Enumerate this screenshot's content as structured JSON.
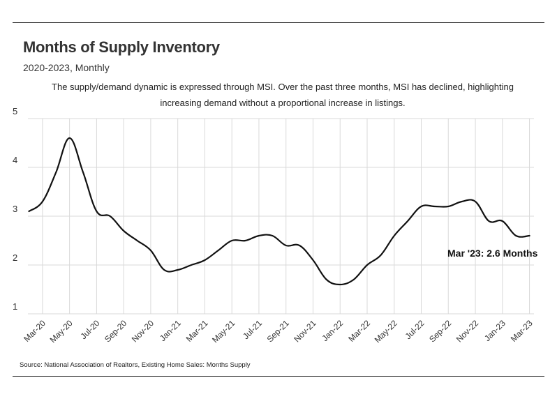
{
  "header": {
    "title": "Months of Supply Inventory",
    "subtitle": "2020-2023, Monthly",
    "description": "The supply/demand dynamic is expressed through MSI. Over the past three months, MSI has declined, highlighting increasing demand without a proportional increase in listings."
  },
  "source": "Source:  National Association of Realtors, Existing Home Sales: Months Supply",
  "colors": {
    "line": "#111111",
    "grid": "#d9d9d9",
    "text": "#333333"
  },
  "chart_data": {
    "type": "line",
    "title": "Months of Supply Inventory",
    "xlabel": "",
    "ylabel": "",
    "ylim": [
      1,
      5
    ],
    "yticks": [
      1,
      2,
      3,
      4,
      5
    ],
    "grid": true,
    "x_tick_labels": [
      "Mar-20",
      "May-20",
      "Jul-20",
      "Sep-20",
      "Nov-20",
      "Jan-21",
      "Mar-21",
      "May-21",
      "Jul-21",
      "Sep-21",
      "Nov-21",
      "Jan-22",
      "Mar-22",
      "May-22",
      "Jul-22",
      "Sep-22",
      "Nov-22",
      "Jan-23",
      "Mar-23"
    ],
    "categories": [
      "Feb-20",
      "Mar-20",
      "Apr-20",
      "May-20",
      "Jun-20",
      "Jul-20",
      "Aug-20",
      "Sep-20",
      "Oct-20",
      "Nov-20",
      "Dec-20",
      "Jan-21",
      "Feb-21",
      "Mar-21",
      "Apr-21",
      "May-21",
      "Jun-21",
      "Jul-21",
      "Aug-21",
      "Sep-21",
      "Oct-21",
      "Nov-21",
      "Dec-21",
      "Jan-22",
      "Feb-22",
      "Mar-22",
      "Apr-22",
      "May-22",
      "Jun-22",
      "Jul-22",
      "Aug-22",
      "Sep-22",
      "Oct-22",
      "Nov-22",
      "Dec-22",
      "Jan-23",
      "Feb-23",
      "Mar-23"
    ],
    "series": [
      {
        "name": "Months Supply",
        "values": [
          3.1,
          3.3,
          3.9,
          4.6,
          3.9,
          3.1,
          3.0,
          2.7,
          2.5,
          2.3,
          1.9,
          1.9,
          2.0,
          2.1,
          2.3,
          2.5,
          2.5,
          2.6,
          2.6,
          2.4,
          2.4,
          2.1,
          1.7,
          1.6,
          1.7,
          2.0,
          2.2,
          2.6,
          2.9,
          3.2,
          3.2,
          3.2,
          3.3,
          3.3,
          2.9,
          2.9,
          2.6,
          2.6
        ]
      }
    ],
    "annotation": "Mar '23: 2.6 Months"
  }
}
